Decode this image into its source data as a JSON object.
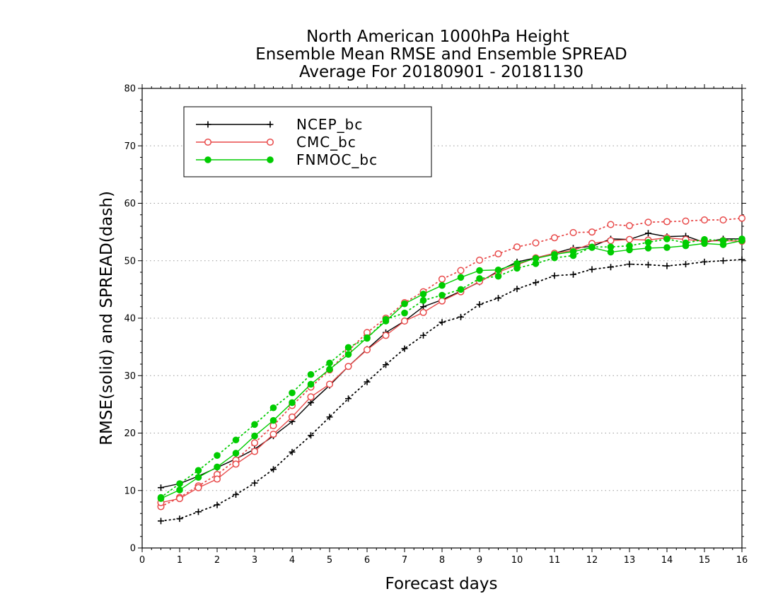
{
  "chart_data": {
    "type": "line",
    "title": [
      "North American 1000hPa Height",
      "Ensemble Mean RMSE and Ensemble SPREAD",
      "Average For 20180901 - 20181130"
    ],
    "xlabel": "Forecast days",
    "ylabel": "RMSE(solid) and SPREAD(dash)",
    "xlim": [
      0,
      16
    ],
    "ylim": [
      0,
      80
    ],
    "xticks": [
      "0",
      "1",
      "2",
      "3",
      "4",
      "5",
      "6",
      "7",
      "8",
      "9",
      "10",
      "11",
      "12",
      "13",
      "14",
      "15",
      "16"
    ],
    "yticks": [
      "0",
      "10",
      "20",
      "30",
      "40",
      "50",
      "60",
      "70",
      "80"
    ],
    "grid": "horizontal-dotted",
    "legend_position": "top-left",
    "x": [
      0.5,
      1,
      1.5,
      2,
      2.5,
      3,
      3.5,
      4,
      4.5,
      5,
      5.5,
      6,
      6.5,
      7,
      7.5,
      8,
      8.5,
      9,
      9.5,
      10,
      10.5,
      11,
      11.5,
      12,
      12.5,
      13,
      13.5,
      14,
      14.5,
      15,
      15.5,
      16
    ],
    "series": [
      {
        "name": "NCEP_bc",
        "color": "#000000",
        "marker": "plus",
        "rmse": [
          10.5,
          11.2,
          12.5,
          14.0,
          15.5,
          17.2,
          19.5,
          22.0,
          25.3,
          28.3,
          31.6,
          34.6,
          37.5,
          39.5,
          42.0,
          43.2,
          44.7,
          46.3,
          48.2,
          49.8,
          50.5,
          51.3,
          52.2,
          52.5,
          53.8,
          53.7,
          54.8,
          54.2,
          54.3,
          53.2,
          53.8,
          53.8
        ],
        "spread": [
          4.7,
          5.1,
          6.3,
          7.5,
          9.3,
          11.3,
          13.7,
          16.7,
          19.6,
          22.8,
          26.0,
          28.9,
          31.9,
          34.7,
          37.0,
          39.3,
          40.2,
          42.4,
          43.5,
          45.1,
          46.2,
          47.4,
          47.6,
          48.5,
          48.9,
          49.4,
          49.3,
          49.1,
          49.4,
          49.8,
          50.0,
          50.2
        ]
      },
      {
        "name": "CMC_bc",
        "color": "#e84a4a",
        "marker": "open-circle",
        "rmse": [
          7.9,
          8.6,
          10.5,
          12.0,
          14.6,
          16.8,
          19.8,
          22.8,
          26.3,
          28.5,
          31.6,
          34.5,
          37.0,
          39.5,
          41.0,
          43.0,
          44.6,
          46.4,
          48.0,
          49.3,
          50.5,
          51.3,
          51.8,
          53.0,
          53.5,
          53.7,
          53.6,
          54.0,
          53.7,
          53.4,
          53.5,
          53.4
        ],
        "spread": [
          7.2,
          8.8,
          10.8,
          12.8,
          15.3,
          18.3,
          21.3,
          24.8,
          28.0,
          31.0,
          34.3,
          37.5,
          40.0,
          42.7,
          44.6,
          46.8,
          48.3,
          50.1,
          51.2,
          52.4,
          53.1,
          54.0,
          54.9,
          55.0,
          56.3,
          56.1,
          56.7,
          56.8,
          56.9,
          57.1,
          57.1,
          57.4
        ]
      },
      {
        "name": "FNMOC_bc",
        "color": "#00cc00",
        "marker": "filled-circle",
        "rmse": [
          8.6,
          10.1,
          12.3,
          14.1,
          16.5,
          19.5,
          22.2,
          25.3,
          28.5,
          31.1,
          33.7,
          36.6,
          39.5,
          42.5,
          44.2,
          45.7,
          47.1,
          48.3,
          48.4,
          49.5,
          50.4,
          51.1,
          51.6,
          52.3,
          51.5,
          51.9,
          52.2,
          52.3,
          52.6,
          53.0,
          52.8,
          53.5
        ],
        "spread": [
          8.8,
          11.2,
          13.5,
          16.1,
          18.8,
          21.5,
          24.4,
          27.0,
          30.2,
          32.2,
          34.9,
          36.5,
          39.8,
          40.9,
          43.1,
          44.0,
          45.0,
          46.9,
          47.3,
          48.7,
          49.5,
          50.5,
          50.9,
          52.4,
          52.4,
          52.6,
          53.2,
          53.8,
          53.1,
          53.7,
          53.5,
          53.8
        ]
      }
    ]
  }
}
